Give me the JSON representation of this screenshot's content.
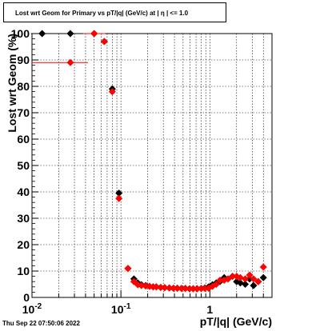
{
  "title": "Lost wrt Geom for Primary vs pT/|q| (GeV/c) at |  η  | <= 1.0",
  "footer": "Thu Sep 22 07:50:06 2022",
  "chart_data": {
    "type": "scatter",
    "title": "Lost wrt Geom for Primary vs pT/|q| (GeV/c) at |  η  | <= 1.0",
    "xlabel": "pT/|q| (GeV/c)",
    "ylabel": "Lost wrt Geom (%)",
    "xscale": "log",
    "xlim": [
      0.01,
      5
    ],
    "ylim": [
      0,
      100
    ],
    "x_tick_labels": [
      "10^-2",
      "10^-1",
      "1"
    ],
    "y_tick_labels": [
      "0",
      "10",
      "20",
      "30",
      "40",
      "50",
      "60",
      "70",
      "80",
      "90",
      "100"
    ],
    "grid": true,
    "series": [
      {
        "color": "#000000",
        "marker": "diamond",
        "points": [
          [
            0.013,
            100
          ],
          [
            0.027,
            100
          ],
          [
            0.05,
            100
          ],
          [
            0.065,
            97
          ],
          [
            0.08,
            79
          ],
          [
            0.095,
            39.5
          ],
          [
            0.12,
            11
          ],
          [
            0.14,
            7
          ],
          [
            0.155,
            5.5
          ],
          [
            0.17,
            4.8
          ],
          [
            0.19,
            4.5
          ],
          [
            0.21,
            4.2
          ],
          [
            0.23,
            4
          ],
          [
            0.25,
            4
          ],
          [
            0.28,
            3.8
          ],
          [
            0.31,
            3.7
          ],
          [
            0.35,
            3.6
          ],
          [
            0.39,
            3.5
          ],
          [
            0.43,
            3.5
          ],
          [
            0.48,
            3.4
          ],
          [
            0.53,
            3.4
          ],
          [
            0.59,
            3.3
          ],
          [
            0.65,
            3.3
          ],
          [
            0.72,
            3.3
          ],
          [
            0.8,
            3.4
          ],
          [
            0.88,
            3.6
          ],
          [
            0.97,
            4
          ],
          [
            1.07,
            4.8
          ],
          [
            1.18,
            5.5
          ],
          [
            1.3,
            6
          ],
          [
            1.45,
            7.5
          ],
          [
            1.6,
            7
          ],
          [
            1.8,
            8
          ],
          [
            2.0,
            6
          ],
          [
            2.2,
            5.5
          ],
          [
            2.5,
            5
          ],
          [
            2.8,
            7
          ],
          [
            3.1,
            4.5
          ],
          [
            3.5,
            6
          ],
          [
            4.0,
            7.5
          ]
        ]
      },
      {
        "color": "#ff0000",
        "marker": "diamond",
        "points": [
          [
            0.027,
            89
          ],
          [
            0.05,
            100
          ],
          [
            0.065,
            97
          ],
          [
            0.08,
            78
          ],
          [
            0.095,
            37.5
          ],
          [
            0.12,
            11
          ],
          [
            0.14,
            6
          ],
          [
            0.155,
            4.8
          ],
          [
            0.17,
            4.5
          ],
          [
            0.19,
            4.3
          ],
          [
            0.21,
            4.2
          ],
          [
            0.23,
            4
          ],
          [
            0.25,
            4
          ],
          [
            0.28,
            3.8
          ],
          [
            0.31,
            3.7
          ],
          [
            0.35,
            3.6
          ],
          [
            0.39,
            3.5
          ],
          [
            0.43,
            3.5
          ],
          [
            0.48,
            3.4
          ],
          [
            0.53,
            3.4
          ],
          [
            0.59,
            3.3
          ],
          [
            0.65,
            3.3
          ],
          [
            0.72,
            3.3
          ],
          [
            0.8,
            3.4
          ],
          [
            0.88,
            3.4
          ],
          [
            0.97,
            3.5
          ],
          [
            1.07,
            4.2
          ],
          [
            1.18,
            5
          ],
          [
            1.3,
            6.5
          ],
          [
            1.45,
            6.5
          ],
          [
            1.6,
            7
          ],
          [
            1.8,
            8
          ],
          [
            2.0,
            8
          ],
          [
            2.2,
            7.5
          ],
          [
            2.5,
            7
          ],
          [
            2.8,
            8.5
          ],
          [
            3.1,
            7
          ],
          [
            3.5,
            6
          ],
          [
            4.0,
            11.5
          ]
        ]
      }
    ]
  }
}
